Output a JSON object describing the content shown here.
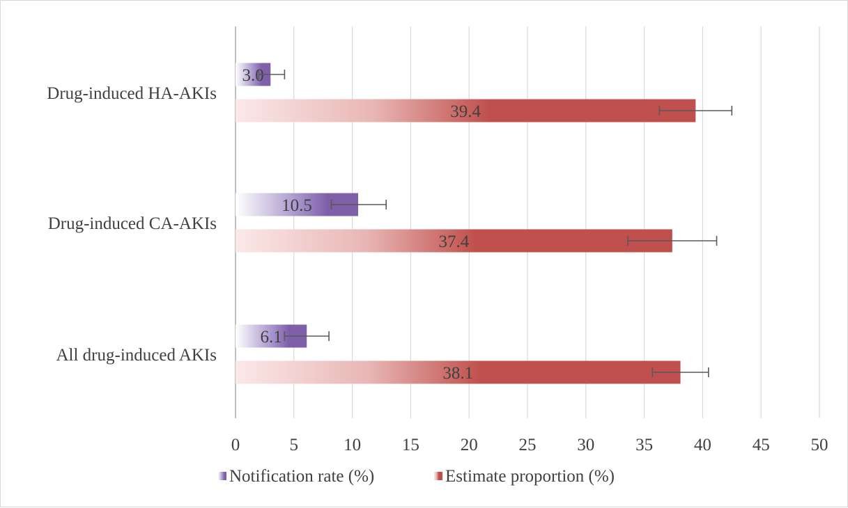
{
  "chart_data": {
    "type": "bar",
    "orientation": "horizontal",
    "title": "",
    "xlabel": "",
    "ylabel": "",
    "categories": [
      "Drug-induced HA-AKIs",
      "Drug-induced CA-AKIs",
      "All drug-induced AKIs"
    ],
    "xlim": [
      0,
      50
    ],
    "xticks": [
      0,
      5,
      10,
      15,
      20,
      25,
      30,
      35,
      40,
      45,
      50
    ],
    "tick_labels": [
      "0",
      "5",
      "10",
      "15",
      "20",
      "25",
      "30",
      "35",
      "40",
      "45",
      "50"
    ],
    "grid": true,
    "legend_position": "bottom",
    "series": [
      {
        "name": "Notification rate (%)",
        "color": "#7f5fa8",
        "fill": "gradient",
        "values": [
          3.0,
          10.5,
          6.1
        ],
        "labels": [
          "3.0",
          "10.5",
          "6.1"
        ],
        "error_low": [
          2.0,
          8.2,
          4.2
        ],
        "error_high": [
          4.2,
          12.9,
          8.0
        ]
      },
      {
        "name": "Estimate proportion (%)",
        "color": "#c0504d",
        "fill": "gradient",
        "values": [
          39.4,
          37.4,
          38.1
        ],
        "labels": [
          "39.4",
          "37.4",
          "38.1"
        ],
        "error_low": [
          36.3,
          33.6,
          35.7
        ],
        "error_high": [
          42.5,
          41.2,
          40.5
        ]
      }
    ]
  }
}
